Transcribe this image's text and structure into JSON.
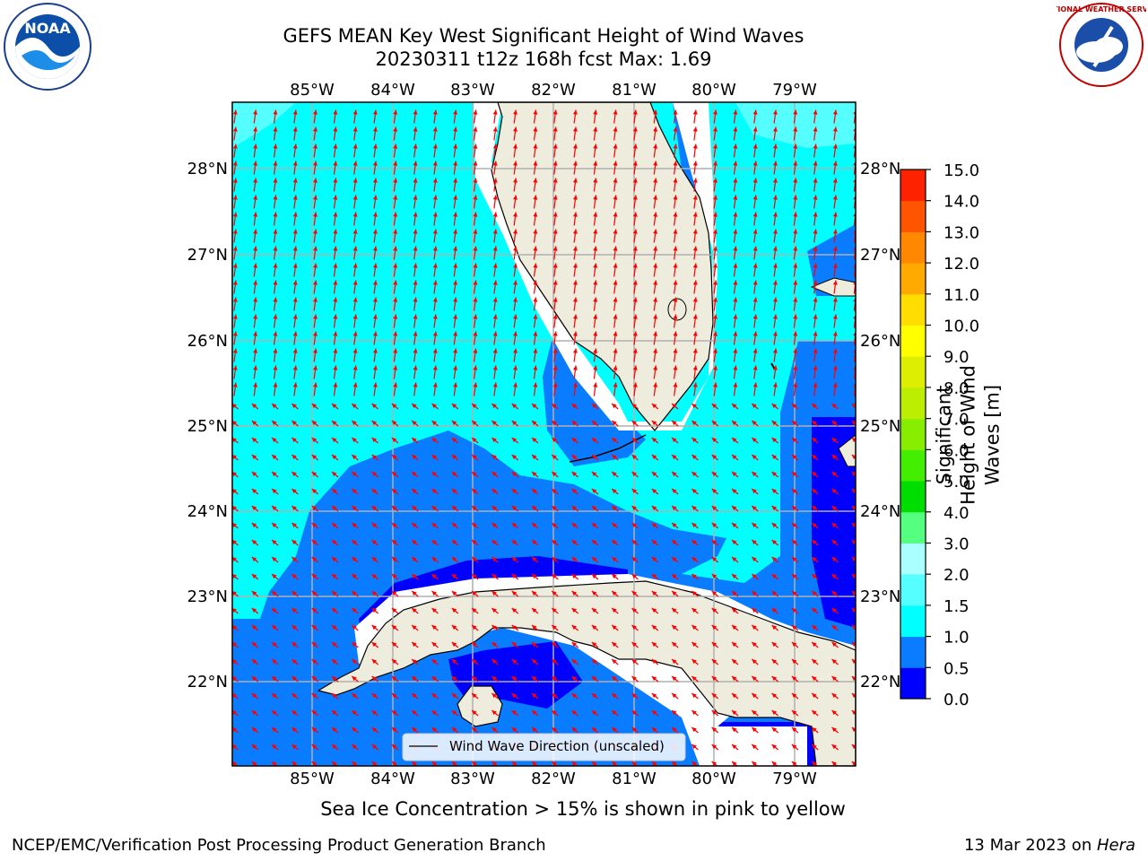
{
  "header": {
    "title_line1": "GEFS MEAN Key West Significant Height of Wind Waves",
    "title_line2": "20230311 t12z 168h fcst   Max: 1.69"
  },
  "logos": {
    "left": {
      "icon": "noaa-logo",
      "text": "NOAA"
    },
    "right": {
      "icon": "nws-logo",
      "text": "NATIONAL WEATHER SERVICE"
    }
  },
  "map": {
    "lon_labels": [
      "85°W",
      "84°W",
      "83°W",
      "82°W",
      "81°W",
      "80°W",
      "79°W"
    ],
    "lat_labels": [
      "28°N",
      "27°N",
      "26°N",
      "25°N",
      "24°N",
      "23°N",
      "22°N"
    ],
    "legend_label": "Wind Wave Direction (unscaled)",
    "colors": {
      "land": "#eeecdc",
      "ocean_0_5_1": "#0a7cff",
      "ocean_1_1_5": "#00ffff",
      "ocean_0_0_5": "#0000ff",
      "arrow": "#ff0000",
      "grid": "#b0b0b0"
    }
  },
  "colorbar": {
    "title": "Significant Height of Wind Waves [m]",
    "ticks": [
      "0.0",
      "0.5",
      "1.0",
      "1.5",
      "2.0",
      "3.0",
      "4.0",
      "5.0",
      "6.0",
      "7.0",
      "8.0",
      "9.0",
      "10.0",
      "11.0",
      "12.0",
      "13.0",
      "14.0",
      "15.0"
    ],
    "colors": [
      "#0000ff",
      "#0a7cff",
      "#00ffff",
      "#55ffff",
      "#aaffff",
      "#55ff80",
      "#00dd00",
      "#44ee00",
      "#88ee00",
      "#bbee00",
      "#ddee00",
      "#ffff00",
      "#ffdd00",
      "#ffaa00",
      "#ff8800",
      "#ff5500",
      "#ff2200",
      "#ff0000"
    ]
  },
  "note": "Sea Ice Concentration > 15% is shown in pink to yellow",
  "footer": {
    "left": "NCEP/EMC/Verification Post Processing Product Generation Branch",
    "date": "13 Mar 2023 on ",
    "host": "Hera"
  }
}
